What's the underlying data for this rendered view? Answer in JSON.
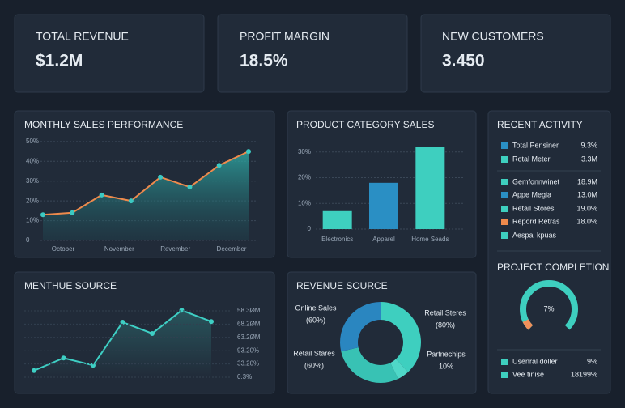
{
  "kpis": [
    {
      "label": "TOTAL REVENUE",
      "value": "$1.2M"
    },
    {
      "label": "PROFIT MARGIN",
      "value": "18.5%"
    },
    {
      "label": "NEW CUSTOMERS",
      "value": "3.450"
    }
  ],
  "chart_data": [
    {
      "type": "area",
      "title": "MONTHLY SALES PERFORMANCE",
      "x_labels": [
        "October",
        "November",
        "Revember",
        "December"
      ],
      "values": [
        13,
        14,
        23,
        20,
        32,
        27,
        38,
        45
      ],
      "color": "#ee8a4c",
      "marker_color": "#3cc9c2",
      "ylim": [
        0,
        52
      ],
      "yticks": [
        {
          "value": 0,
          "label": "0"
        },
        {
          "value": 10,
          "label": "10%"
        },
        {
          "value": 20,
          "label": "20%"
        },
        {
          "value": 30,
          "label": "30%"
        },
        {
          "value": 40,
          "label": "40%"
        },
        {
          "value": 50,
          "label": "50%"
        }
      ],
      "grid": true
    },
    {
      "type": "bar",
      "title": "PRODUCT CATEGORY SALES",
      "categories": [
        "Electronics",
        "Apparel",
        "Home Seads"
      ],
      "values": [
        7,
        18,
        32
      ],
      "colors": [
        "#3ecfbf",
        "#2a8fc4",
        "#3ecfbf"
      ],
      "ylim": [
        0,
        34
      ],
      "yticks": [
        {
          "value": 0,
          "label": "0"
        },
        {
          "value": 10,
          "label": "10%"
        },
        {
          "value": 20,
          "label": "20%"
        },
        {
          "value": 30,
          "label": "30%"
        }
      ],
      "grid": true
    },
    {
      "type": "area",
      "title": "MENTHUE SOURCE",
      "axis_labels": [
        "58.3ØM",
        "68.2ØM",
        "63.2ØM",
        "93.20%",
        "33.20%",
        "0.3%"
      ],
      "values": [
        10,
        29,
        18,
        83,
        66,
        101,
        84
      ],
      "color": "#3ecfc4",
      "marker_color": "#3ecfc4",
      "ylim": [
        0,
        105
      ]
    },
    {
      "type": "pie",
      "title": "REVENUE SOURCE",
      "categories": [
        "Online Sales",
        "Retail Steres",
        "Retail Stares",
        "Partnechips"
      ],
      "values": [
        60,
        80,
        60,
        10
      ],
      "value_labels": [
        "(60%)",
        "(80%)",
        "(60%)",
        "10%"
      ],
      "colors": [
        "#2a86c0",
        "#3ecfbf",
        "#38c2b4",
        "#4fd8c8"
      ]
    },
    {
      "type": "gauge",
      "title": "PROJECT COMPLETION",
      "value": 7,
      "value_label": "7%",
      "color": "#f0905a",
      "track_color": "#3ecfbf"
    }
  ],
  "activity": {
    "title": "RECENT ACTIVITY",
    "items": [
      {
        "name": "Total Pensiner",
        "value": "9.3%",
        "color": "#2a8fc4"
      },
      {
        "name": "Rotal Meter",
        "value": "3.3M",
        "color": "#3ecfbf"
      },
      {
        "name": "Gemfonnwinet",
        "value": "18.9M",
        "color": "#3ecfbf"
      },
      {
        "name": "Appe Megia",
        "value": "13.0M",
        "color": "#2a8fc4"
      },
      {
        "name": "Retail Stores",
        "value": "19.0%",
        "color": "#3ecfbf"
      },
      {
        "name": "Repord Retras",
        "value": "18.0%",
        "color": "#ee8a4c"
      },
      {
        "name": "Aespal kpuas",
        "color": "#3ecfbf"
      }
    ],
    "footer": [
      {
        "name": "Usenral doller",
        "value": "9%",
        "color": "#3ecfbf"
      },
      {
        "name": "Vee tinise",
        "value": "18199%",
        "color": "#3ecfbf"
      }
    ]
  }
}
